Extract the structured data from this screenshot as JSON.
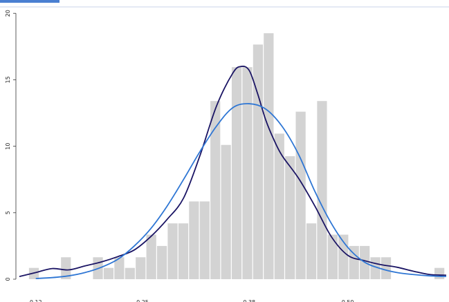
{
  "chart_data": {
    "type": "bar",
    "title": "",
    "xlabel": "",
    "ylabel": "",
    "xlim": [
      0.1,
      0.62
    ],
    "ylim": [
      0,
      21
    ],
    "y_ticks": [
      0,
      5,
      10,
      15,
      20
    ],
    "x_ticks": [
      0.12,
      0.25,
      0.38,
      0.5
    ],
    "x_tick_labels": [
      "0.12",
      "0.25",
      "0.38",
      "0.50"
    ],
    "grid": false,
    "bin_width": 0.013,
    "histogram_left_edges": [
      0.1117,
      0.1247,
      0.1377,
      0.1507,
      0.1637,
      0.1767,
      0.1897,
      0.2027,
      0.2157,
      0.2287,
      0.2417,
      0.2547,
      0.2677,
      0.2807,
      0.2937,
      0.3067,
      0.3197,
      0.3327,
      0.3457,
      0.3587,
      0.3717,
      0.3847,
      0.3977,
      0.4107,
      0.4237,
      0.4367,
      0.4497,
      0.4627,
      0.4757,
      0.4887,
      0.5017,
      0.5147,
      0.5277,
      0.5407,
      0.5537,
      0.5667,
      0.5797,
      0.5927,
      0.6057
    ],
    "values": [
      0.85,
      0.0,
      0.0,
      1.65,
      0.0,
      0.0,
      1.65,
      0.85,
      1.65,
      0.85,
      1.65,
      3.35,
      2.5,
      4.2,
      4.2,
      5.85,
      5.85,
      13.4,
      10.1,
      15.95,
      15.95,
      17.65,
      18.5,
      10.95,
      9.25,
      12.6,
      4.2,
      13.4,
      3.35,
      3.35,
      2.5,
      2.5,
      1.65,
      1.65,
      0.0,
      0.0,
      0.0,
      0.0,
      0.85
    ],
    "bar_color": "#d3d3d3",
    "series": [
      {
        "kind": "density-curve",
        "color": "#1a1464",
        "x": [
          0.1,
          0.12,
          0.14,
          0.16,
          0.18,
          0.2,
          0.22,
          0.24,
          0.26,
          0.28,
          0.3,
          0.32,
          0.34,
          0.36,
          0.37,
          0.38,
          0.39,
          0.4,
          0.41,
          0.42,
          0.44,
          0.46,
          0.48,
          0.5,
          0.52,
          0.54,
          0.56,
          0.58,
          0.6,
          0.62
        ],
        "values": [
          0.2,
          0.5,
          0.8,
          0.7,
          1.0,
          1.3,
          1.7,
          2.2,
          3.2,
          4.5,
          6.1,
          9.3,
          13.0,
          15.5,
          16.0,
          15.7,
          14.0,
          12.0,
          10.5,
          9.3,
          7.6,
          5.5,
          3.2,
          1.8,
          1.4,
          1.1,
          0.9,
          0.6,
          0.35,
          0.3
        ]
      },
      {
        "kind": "normal-fit",
        "color": "#2e76d4",
        "x": [
          0.12,
          0.14,
          0.16,
          0.18,
          0.2,
          0.22,
          0.24,
          0.26,
          0.28,
          0.3,
          0.32,
          0.34,
          0.36,
          0.38,
          0.4,
          0.42,
          0.44,
          0.46,
          0.48,
          0.5,
          0.52,
          0.54,
          0.56,
          0.58,
          0.6,
          0.62
        ],
        "values": [
          0.05,
          0.12,
          0.25,
          0.5,
          0.9,
          1.5,
          2.5,
          3.8,
          5.5,
          7.5,
          9.6,
          11.5,
          12.9,
          13.2,
          12.8,
          11.5,
          9.4,
          6.6,
          4.2,
          2.4,
          1.3,
          0.8,
          0.5,
          0.35,
          0.25,
          0.2
        ]
      }
    ]
  }
}
